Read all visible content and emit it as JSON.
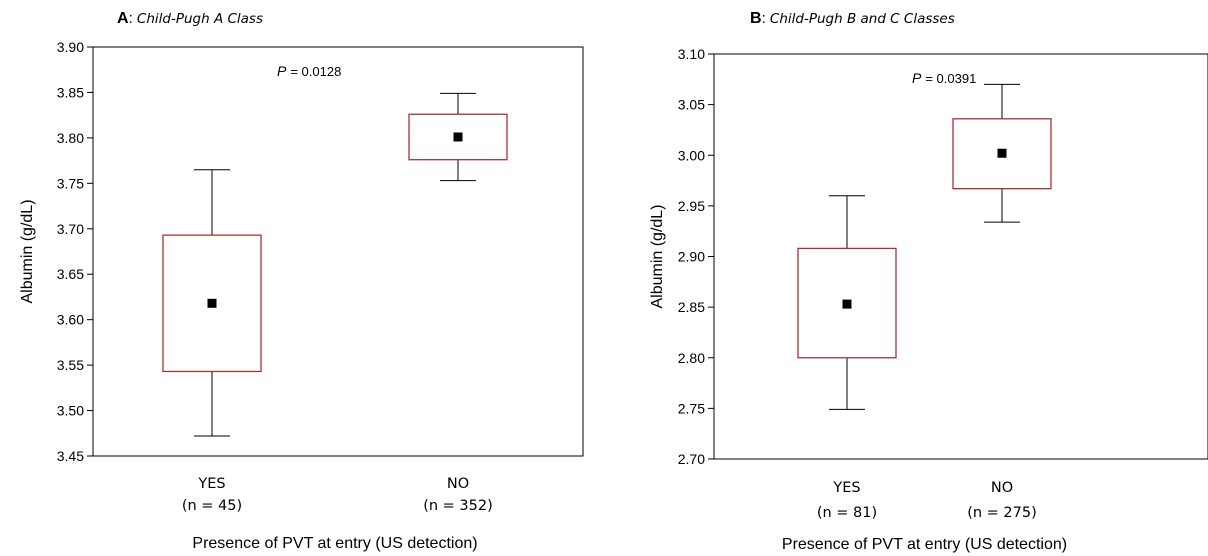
{
  "chart_data": [
    {
      "type": "box",
      "panel_letter": "A",
      "title": "Child-Pugh A Class",
      "xlabel": "Presence of PVT at entry (US detection)",
      "ylabel": "Albumin (g/dL)",
      "ylim": [
        3.45,
        3.9
      ],
      "yticks": [
        "3.45",
        "3.50",
        "3.55",
        "3.60",
        "3.65",
        "3.70",
        "3.75",
        "3.80",
        "3.85",
        "3.90"
      ],
      "annotation": {
        "label": "P",
        "text": "= 0.0128"
      },
      "groups": [
        {
          "name": "YES",
          "n_label": "(n = 45)",
          "mean": 3.618,
          "box_low": 3.543,
          "box_high": 3.693,
          "whisker_low": 3.472,
          "whisker_high": 3.765
        },
        {
          "name": "NO",
          "n_label": "(n = 352)",
          "mean": 3.801,
          "box_low": 3.776,
          "box_high": 3.826,
          "whisker_low": 3.753,
          "whisker_high": 3.849
        }
      ],
      "colors": {
        "box": "#a83232",
        "whisker": "#000000",
        "mean": "#000000"
      }
    },
    {
      "type": "box",
      "panel_letter": "B",
      "title": "Child-Pugh B and C Classes",
      "xlabel": "Presence of PVT at entry (US detection)",
      "ylabel": "Albumin (g/dL)",
      "ylim": [
        2.7,
        3.1
      ],
      "yticks": [
        "2.70",
        "2.75",
        "2.80",
        "2.85",
        "2.90",
        "2.95",
        "3.00",
        "3.05",
        "3.10"
      ],
      "annotation": {
        "label": "P",
        "text": "= 0.0391"
      },
      "groups": [
        {
          "name": "YES",
          "n_label": "(n = 81)",
          "mean": 2.853,
          "box_low": 2.8,
          "box_high": 2.908,
          "whisker_low": 2.749,
          "whisker_high": 2.96
        },
        {
          "name": "NO",
          "n_label": "(n = 275)",
          "mean": 3.002,
          "box_low": 2.967,
          "box_high": 3.036,
          "whisker_low": 2.934,
          "whisker_high": 3.07
        }
      ],
      "colors": {
        "box": "#a83232",
        "whisker": "#000000",
        "mean": "#000000"
      }
    }
  ]
}
